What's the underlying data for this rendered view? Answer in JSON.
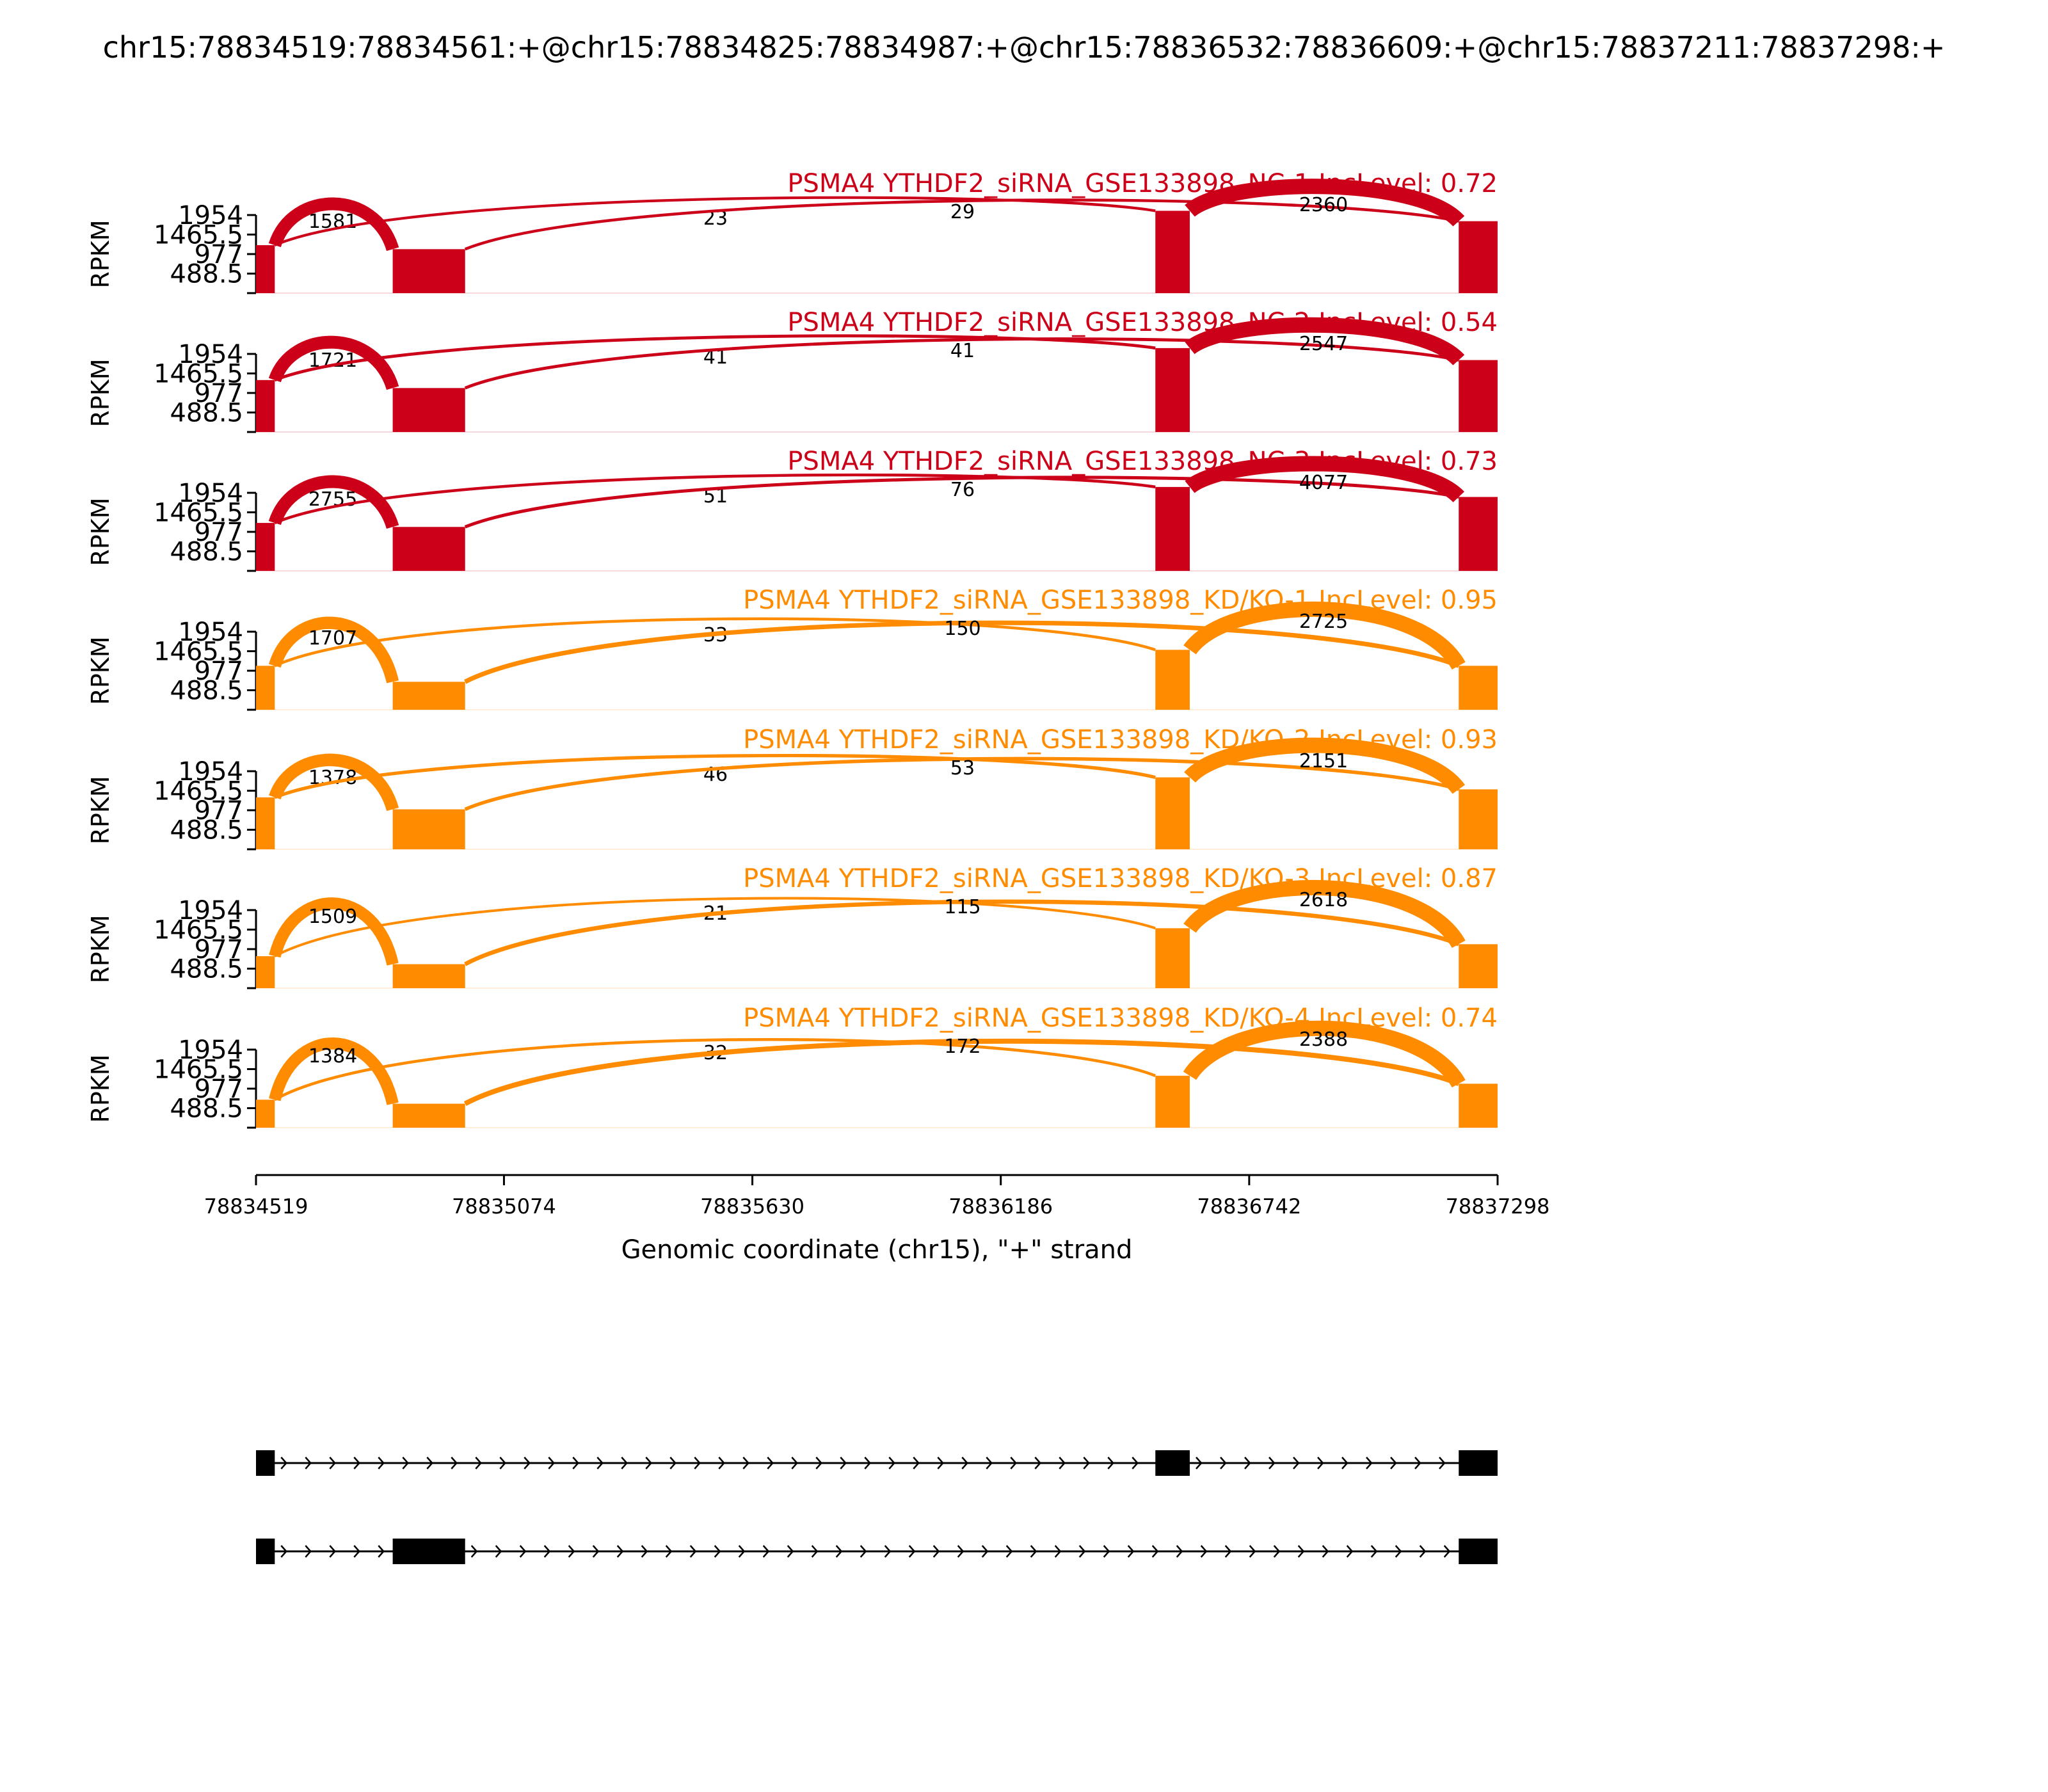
{
  "figure_title": "chr15:78834519:78834561:+@chr15:78834825:78834987:+@chr15:78836532:78836609:+@chr15:78837211:78837298:+",
  "colors": {
    "nc": "#cc0018",
    "kd": "#ff8c00",
    "axis": "#000000",
    "gene": "#000000"
  },
  "chart_data": {
    "type": "area",
    "subtype": "sashimi",
    "xlabel": "Genomic coordinate (chr15), \"+\" strand",
    "ylabel": "RPKM",
    "xlim": [
      78834519,
      78837298
    ],
    "xticks": [
      78834519,
      78835074,
      78835630,
      78836186,
      78836742,
      78837298
    ],
    "xtick_labels": [
      "78834519",
      "78835074",
      "78835630",
      "78836186",
      "78836742",
      "78837298"
    ],
    "ylim": [
      0,
      1954
    ],
    "yticks": [
      488.5,
      977,
      1465.5,
      1954
    ],
    "ytick_labels": [
      "488.5",
      "977",
      "1465.5",
      "1954"
    ],
    "exons": [
      [
        78834519,
        78834561
      ],
      [
        78834825,
        78834987
      ],
      [
        78836532,
        78836609
      ],
      [
        78837211,
        78837298
      ]
    ],
    "coverage_levels": [
      {
        "name": "PSMA4 YTHDF2_siRNA_GSE133898_NC-1",
        "values": [
          1200,
          1100,
          2060,
          1800
        ]
      },
      {
        "name": "PSMA4 YTHDF2_siRNA_GSE133898_NC-2",
        "values": [
          1300,
          1100,
          2100,
          1800
        ]
      },
      {
        "name": "PSMA4 YTHDF2_siRNA_GSE133898_NC-3",
        "values": [
          1200,
          1100,
          2100,
          1850
        ]
      },
      {
        "name": "PSMA4 YTHDF2_siRNA_GSE133898_KD/KO-1",
        "values": [
          1100,
          700,
          1500,
          1100
        ]
      },
      {
        "name": "PSMA4 YTHDF2_siRNA_GSE133898_KD/KO-2",
        "values": [
          1300,
          1000,
          1800,
          1500
        ]
      },
      {
        "name": "PSMA4 YTHDF2_siRNA_GSE133898_KD/KO-3",
        "values": [
          800,
          600,
          1500,
          1100
        ]
      },
      {
        "name": "PSMA4 YTHDF2_siRNA_GSE133898_KD/KO-4",
        "values": [
          700,
          600,
          1300,
          1100
        ]
      }
    ],
    "series": [
      {
        "name": "PSMA4 YTHDF2_siRNA_GSE133898_NC-1",
        "group": "NC",
        "inc_level": "IncLevel: 0.72",
        "junctions": [
          1581,
          23,
          29,
          2360
        ]
      },
      {
        "name": "PSMA4 YTHDF2_siRNA_GSE133898_NC-2",
        "group": "NC",
        "inc_level": "IncLevel: 0.54",
        "junctions": [
          1721,
          41,
          41,
          2547
        ]
      },
      {
        "name": "PSMA4 YTHDF2_siRNA_GSE133898_NC-3",
        "group": "NC",
        "inc_level": "IncLevel: 0.73",
        "junctions": [
          2755,
          51,
          76,
          4077
        ]
      },
      {
        "name": "PSMA4 YTHDF2_siRNA_GSE133898_KD/KO-1",
        "group": "KD",
        "inc_level": "IncLevel: 0.95",
        "junctions": [
          1707,
          33,
          150,
          2725
        ]
      },
      {
        "name": "PSMA4 YTHDF2_siRNA_GSE133898_KD/KO-2",
        "group": "KD",
        "inc_level": "IncLevel: 0.93",
        "junctions": [
          1378,
          46,
          53,
          2151
        ]
      },
      {
        "name": "PSMA4 YTHDF2_siRNA_GSE133898_KD/KO-3",
        "group": "KD",
        "inc_level": "IncLevel: 0.87",
        "junctions": [
          1509,
          21,
          115,
          2618
        ]
      },
      {
        "name": "PSMA4 YTHDF2_siRNA_GSE133898_KD/KO-4",
        "group": "KD",
        "inc_level": "IncLevel: 0.74",
        "junctions": [
          1384,
          32,
          172,
          2388
        ]
      }
    ],
    "isoforms": [
      {
        "exons": [
          [
            78834519,
            78834561
          ],
          [
            78836532,
            78836609
          ],
          [
            78837211,
            78837298
          ]
        ]
      },
      {
        "exons": [
          [
            78834519,
            78834561
          ],
          [
            78834825,
            78834987
          ],
          [
            78837211,
            78837298
          ]
        ]
      }
    ]
  }
}
